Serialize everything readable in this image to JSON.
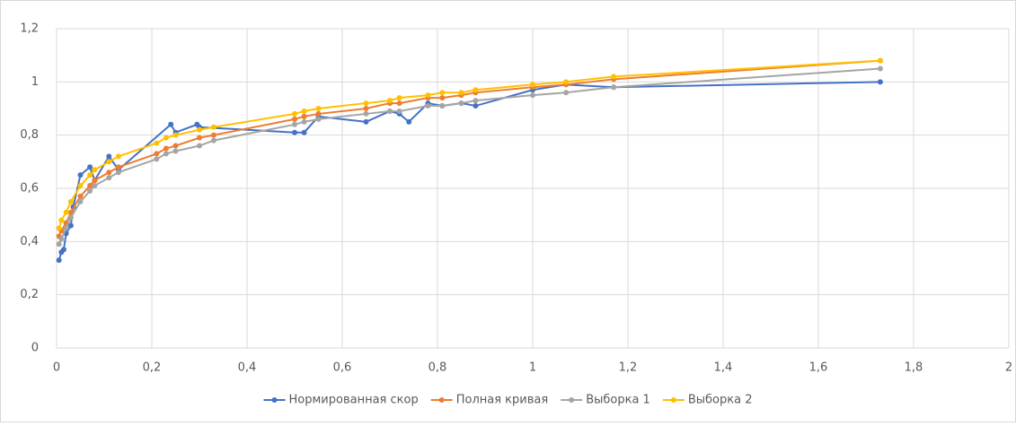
{
  "chart_data": {
    "type": "scatter",
    "xlim": [
      0,
      2
    ],
    "xticks": [
      0,
      {
        "value": 0.2,
        "label": "0,2"
      },
      {
        "value": 0.4,
        "label": "0,4"
      },
      {
        "value": 0.6,
        "label": "0,6"
      },
      {
        "value": 0.8,
        "label": "0,8"
      },
      1,
      {
        "value": 1.2,
        "label": "1,2"
      },
      {
        "value": 1.4,
        "label": "1,4"
      },
      {
        "value": 1.6,
        "label": "1,6"
      },
      {
        "value": 1.8,
        "label": "1,8"
      },
      2
    ],
    "ylim": [
      0,
      1.2
    ],
    "yticks": [
      0,
      {
        "value": 0.2,
        "label": "0,2"
      },
      {
        "value": 0.4,
        "label": "0,4"
      },
      {
        "value": 0.6,
        "label": "0,6"
      },
      {
        "value": 0.8,
        "label": "0,8"
      },
      1,
      {
        "value": 1.2,
        "label": "1,2"
      }
    ],
    "grid": true,
    "legend": "bottom",
    "series": [
      {
        "name": "Нормированная скор",
        "color": "#4472c4",
        "x": [
          0.005,
          0.01,
          0.015,
          0.02,
          0.03,
          0.035,
          0.05,
          0.07,
          0.08,
          0.11,
          0.13,
          0.24,
          0.25,
          0.295,
          0.3,
          0.5,
          0.52,
          0.55,
          0.65,
          0.7,
          0.72,
          0.74,
          0.78,
          0.81,
          0.85,
          0.88,
          1.0,
          1.07,
          1.17,
          1.73
        ],
        "values": [
          0.33,
          0.36,
          0.37,
          0.43,
          0.46,
          0.53,
          0.65,
          0.68,
          0.63,
          0.72,
          0.67,
          0.84,
          0.81,
          0.84,
          0.83,
          0.81,
          0.81,
          0.87,
          0.85,
          0.89,
          0.88,
          0.85,
          0.92,
          0.91,
          0.92,
          0.91,
          0.97,
          0.99,
          0.98,
          1.0
        ]
      },
      {
        "name": "Полная кривая",
        "color": "#ed7d31",
        "x": [
          0.005,
          0.01,
          0.02,
          0.03,
          0.05,
          0.07,
          0.08,
          0.11,
          0.13,
          0.21,
          0.23,
          0.25,
          0.3,
          0.33,
          0.5,
          0.52,
          0.55,
          0.65,
          0.7,
          0.72,
          0.78,
          0.81,
          0.85,
          0.88,
          1.0,
          1.07,
          1.17,
          1.73
        ],
        "values": [
          0.42,
          0.44,
          0.47,
          0.51,
          0.57,
          0.61,
          0.63,
          0.66,
          0.68,
          0.73,
          0.75,
          0.76,
          0.79,
          0.8,
          0.86,
          0.87,
          0.88,
          0.9,
          0.92,
          0.92,
          0.94,
          0.94,
          0.95,
          0.96,
          0.98,
          0.99,
          1.01,
          1.08
        ]
      },
      {
        "name": "Выборка 1",
        "color": "#a5a5a5",
        "x": [
          0.005,
          0.01,
          0.02,
          0.03,
          0.05,
          0.07,
          0.08,
          0.11,
          0.13,
          0.21,
          0.23,
          0.25,
          0.3,
          0.33,
          0.5,
          0.52,
          0.55,
          0.65,
          0.7,
          0.72,
          0.78,
          0.81,
          0.85,
          0.88,
          1.0,
          1.07,
          1.17,
          1.73
        ],
        "values": [
          0.39,
          0.41,
          0.45,
          0.49,
          0.55,
          0.59,
          0.61,
          0.64,
          0.66,
          0.71,
          0.73,
          0.74,
          0.76,
          0.78,
          0.84,
          0.85,
          0.86,
          0.88,
          0.89,
          0.89,
          0.91,
          0.91,
          0.92,
          0.93,
          0.95,
          0.96,
          0.98,
          1.05
        ]
      },
      {
        "name": "Выборка 2",
        "color": "#ffc000",
        "x": [
          0.005,
          0.01,
          0.02,
          0.03,
          0.05,
          0.07,
          0.08,
          0.11,
          0.13,
          0.21,
          0.23,
          0.25,
          0.3,
          0.33,
          0.5,
          0.52,
          0.55,
          0.65,
          0.7,
          0.72,
          0.78,
          0.81,
          0.85,
          0.88,
          1.0,
          1.07,
          1.17,
          1.73
        ],
        "values": [
          0.45,
          0.48,
          0.51,
          0.55,
          0.61,
          0.65,
          0.67,
          0.7,
          0.72,
          0.77,
          0.79,
          0.8,
          0.82,
          0.83,
          0.88,
          0.89,
          0.9,
          0.92,
          0.93,
          0.94,
          0.95,
          0.96,
          0.96,
          0.97,
          0.99,
          1.0,
          1.02,
          1.08
        ]
      }
    ]
  }
}
